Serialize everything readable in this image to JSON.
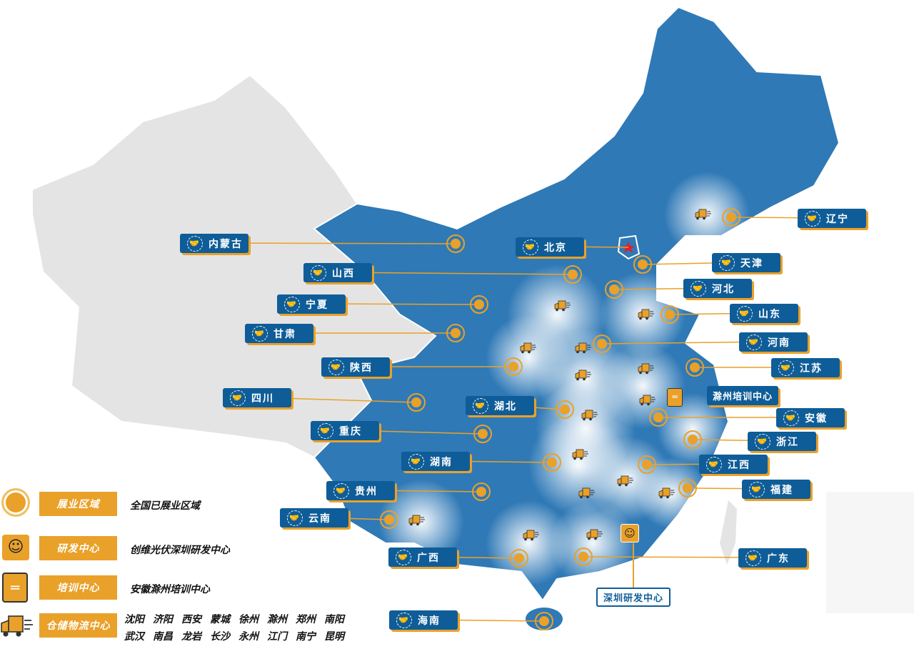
{
  "colors": {
    "map_blue": "#2f79b6",
    "label_blue": "#0f5d98",
    "gold": "#e9a12a",
    "grey_region": "#e4e4e4",
    "capital_star": "#e0202a"
  },
  "capital": "北京",
  "provinces": [
    {
      "name": "内蒙古"
    },
    {
      "name": "山西"
    },
    {
      "name": "宁夏"
    },
    {
      "name": "甘肃"
    },
    {
      "name": "陕西"
    },
    {
      "name": "四川"
    },
    {
      "name": "重庆"
    },
    {
      "name": "湖南"
    },
    {
      "name": "贵州"
    },
    {
      "name": "云南"
    },
    {
      "name": "广西"
    },
    {
      "name": "海南"
    },
    {
      "name": "北京"
    },
    {
      "name": "辽宁"
    },
    {
      "name": "天津"
    },
    {
      "name": "河北"
    },
    {
      "name": "山东"
    },
    {
      "name": "河南"
    },
    {
      "name": "江苏"
    },
    {
      "name": "湖北"
    },
    {
      "name": "安徽"
    },
    {
      "name": "浙江"
    },
    {
      "name": "江西"
    },
    {
      "name": "福建"
    },
    {
      "name": "广东"
    }
  ],
  "centers": {
    "training": "滁州培训中心",
    "rnd": "深圳研发中心"
  },
  "legend": [
    {
      "icon": "circle-marker-icon",
      "tag": "展业区域",
      "desc": "全国已展业区域"
    },
    {
      "icon": "researcher-icon",
      "tag": "研发中心",
      "desc": "创维光伏深圳研发中心"
    },
    {
      "icon": "clipboard-icon",
      "tag": "培训中心",
      "desc": "安徽滁州培训中心"
    },
    {
      "icon": "truck-icon",
      "tag": "仓储物流中心",
      "desc": ""
    }
  ],
  "logistics_cities": [
    "沈阳",
    "济阳",
    "西安",
    "蒙城",
    "徐州",
    "滁州",
    "郑州",
    "南阳",
    "武汉",
    "南昌",
    "龙岩",
    "长沙",
    "永州",
    "江门",
    "南宁",
    "昆明"
  ]
}
